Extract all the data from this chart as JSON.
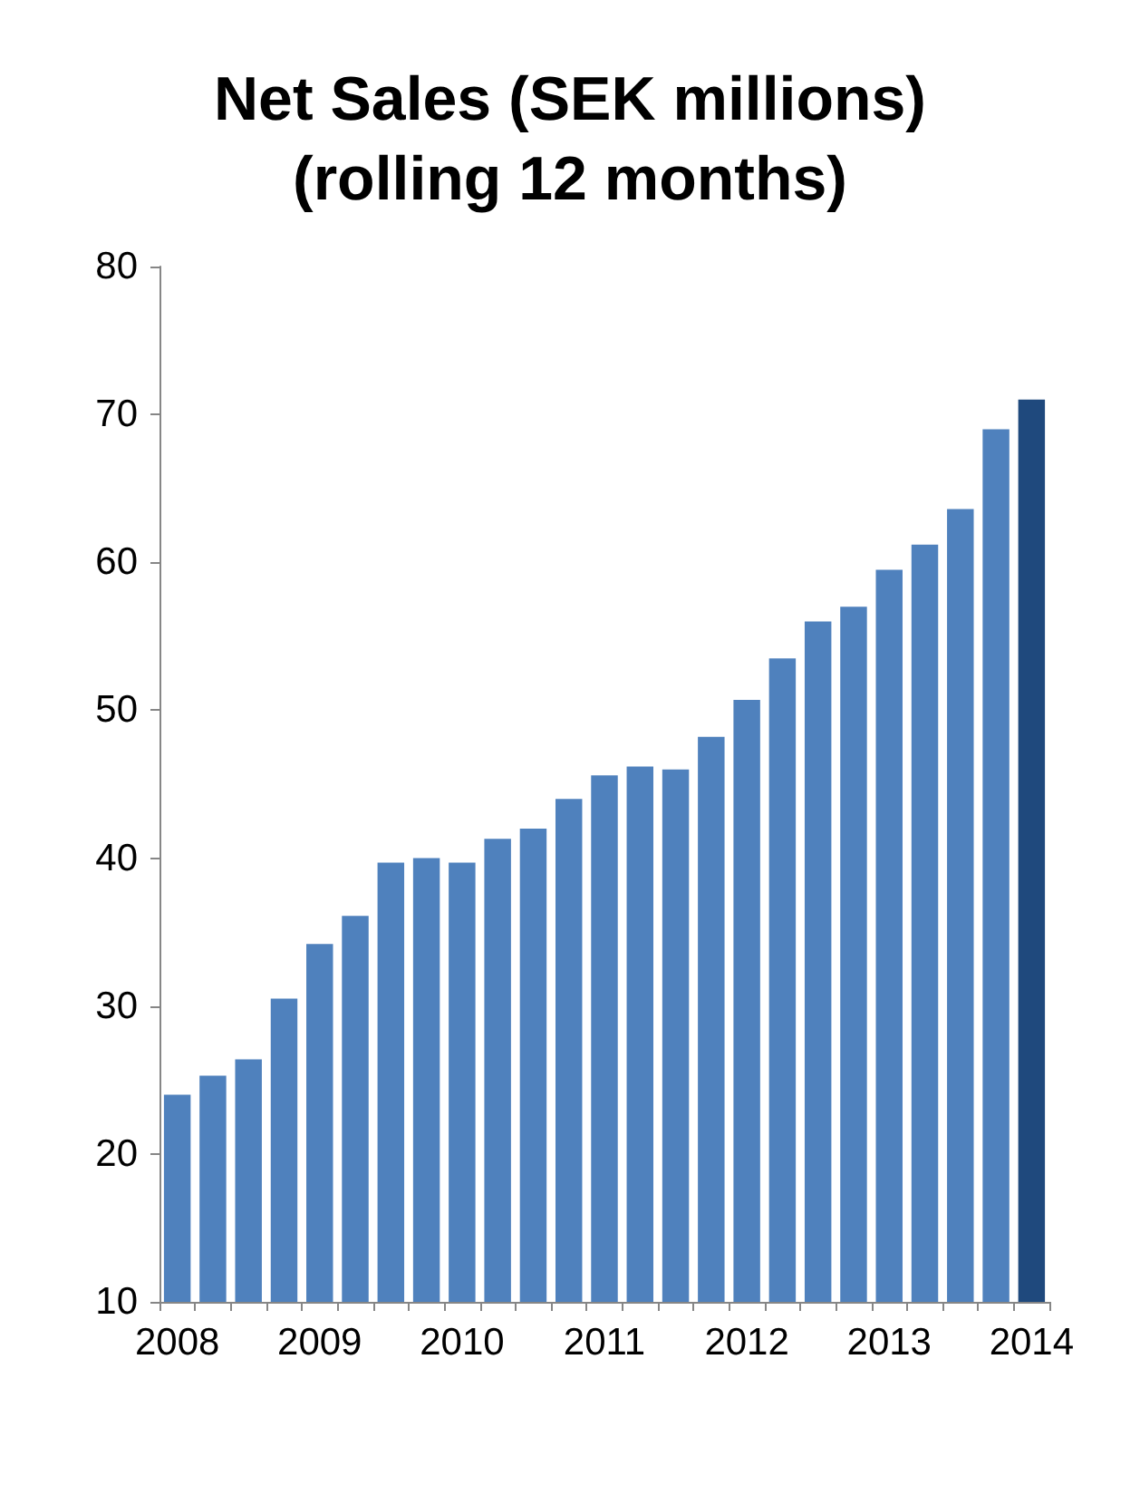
{
  "chart_data": {
    "type": "bar",
    "title": "Net Sales (SEK millions)\n(rolling 12 months)",
    "categories": [
      "2008",
      null,
      null,
      null,
      "2009",
      null,
      null,
      null,
      "2010",
      null,
      null,
      null,
      "2011",
      null,
      null,
      null,
      "2012",
      null,
      null,
      null,
      "2013",
      null,
      null,
      null,
      "2014"
    ],
    "values": [
      24.0,
      25.3,
      26.4,
      30.5,
      34.2,
      36.1,
      39.7,
      40.0,
      39.7,
      41.3,
      42.0,
      44.0,
      45.6,
      46.2,
      46.0,
      48.2,
      50.7,
      53.5,
      56.0,
      57.0,
      59.5,
      61.2,
      63.6,
      69.0,
      71.0
    ],
    "colors": [
      "#4f81bd",
      "#4f81bd",
      "#4f81bd",
      "#4f81bd",
      "#4f81bd",
      "#4f81bd",
      "#4f81bd",
      "#4f81bd",
      "#4f81bd",
      "#4f81bd",
      "#4f81bd",
      "#4f81bd",
      "#4f81bd",
      "#4f81bd",
      "#4f81bd",
      "#4f81bd",
      "#4f81bd",
      "#4f81bd",
      "#4f81bd",
      "#4f81bd",
      "#4f81bd",
      "#4f81bd",
      "#4f81bd",
      "#4f81bd",
      "#1f497d"
    ],
    "ylim": [
      10,
      80
    ],
    "yticks": [
      10,
      20,
      30,
      40,
      50,
      60,
      70,
      80
    ],
    "grid": false
  }
}
